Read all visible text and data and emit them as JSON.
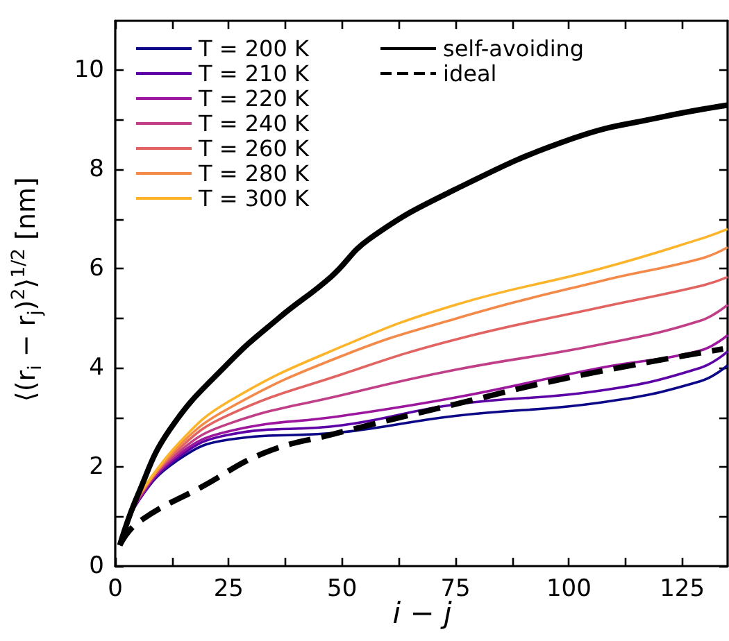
{
  "chart_data": {
    "type": "line",
    "xlabel": "i − j",
    "ylabel": "⟨(r$_{i}$ − r$_{j}$)$^{2}$⟩$^{1/2}$ [nm]",
    "xlim": [
      0,
      135
    ],
    "ylim": [
      0,
      11
    ],
    "xticks": [
      0,
      {
        "value": 12.5,
        "label": null
      },
      25,
      {
        "value": 37.5,
        "label": null
      },
      50,
      {
        "value": 62.5,
        "label": null
      },
      75,
      {
        "value": 87.5,
        "label": null
      },
      100,
      {
        "value": 112.5,
        "label": null
      },
      125
    ],
    "yticks": [
      0,
      {
        "value": 1,
        "label": null
      },
      2,
      {
        "value": 3,
        "label": null
      },
      4,
      {
        "value": 5,
        "label": null
      },
      6,
      {
        "value": 7,
        "label": null
      },
      8,
      {
        "value": 9,
        "label": null
      },
      10
    ],
    "x": [
      1,
      5,
      14,
      25,
      50,
      75,
      107,
      129,
      135
    ],
    "legend": "top left",
    "grid": false,
    "marker": "none",
    "line_style": "solid",
    "series": [
      {
        "name": "T = 200 K",
        "color": "#0d0887",
        "values": [
          0.42,
          1.3,
          2.15,
          2.55,
          2.7,
          3.03,
          3.3,
          3.73,
          4.05
        ]
      },
      {
        "name": "T = 210 K",
        "color": "#5c01a6",
        "values": [
          0.42,
          1.3,
          2.2,
          2.65,
          2.84,
          3.26,
          3.54,
          4.0,
          4.33
        ]
      },
      {
        "name": "T = 220 K",
        "color": "#9c179e",
        "values": [
          0.42,
          1.32,
          2.25,
          2.72,
          3.03,
          3.4,
          4.0,
          4.35,
          4.66
        ]
      },
      {
        "name": "T = 240 K",
        "color": "#c13f87",
        "values": [
          0.42,
          1.34,
          2.3,
          2.87,
          3.45,
          3.96,
          4.47,
          4.95,
          5.27
        ]
      },
      {
        "name": "T = 260 K",
        "color": "#e16462",
        "values": [
          0.42,
          1.36,
          2.36,
          3.05,
          3.87,
          4.57,
          5.22,
          5.65,
          5.83
        ]
      },
      {
        "name": "T = 280 K",
        "color": "#f48a4a",
        "values": [
          null,
          1.38,
          2.42,
          3.18,
          4.24,
          4.99,
          5.75,
          6.2,
          6.43
        ]
      },
      {
        "name": "T = 300 K",
        "color": "#fcb52b",
        "values": [
          null,
          1.4,
          2.48,
          3.32,
          4.43,
          5.27,
          6.0,
          6.6,
          6.8
        ]
      },
      {
        "name": "self-avoiding",
        "color": "#000000",
        "x": [
          1,
          5,
          12,
          25,
          36,
          47.5,
          56,
          75,
          101,
          120,
          135
        ],
        "values": [
          0.42,
          1.44,
          2.75,
          4.1,
          5.0,
          5.83,
          6.6,
          7.6,
          8.63,
          9.05,
          9.3
        ]
      },
      {
        "name": "ideal",
        "color": "#000000",
        "line_style": "dashed",
        "x": [
          1,
          5,
          19.5,
          32.8,
          48,
          74.7,
          101,
          134
        ],
        "values": [
          0.42,
          0.88,
          1.62,
          2.28,
          2.66,
          3.26,
          3.82,
          4.38
        ]
      }
    ]
  }
}
